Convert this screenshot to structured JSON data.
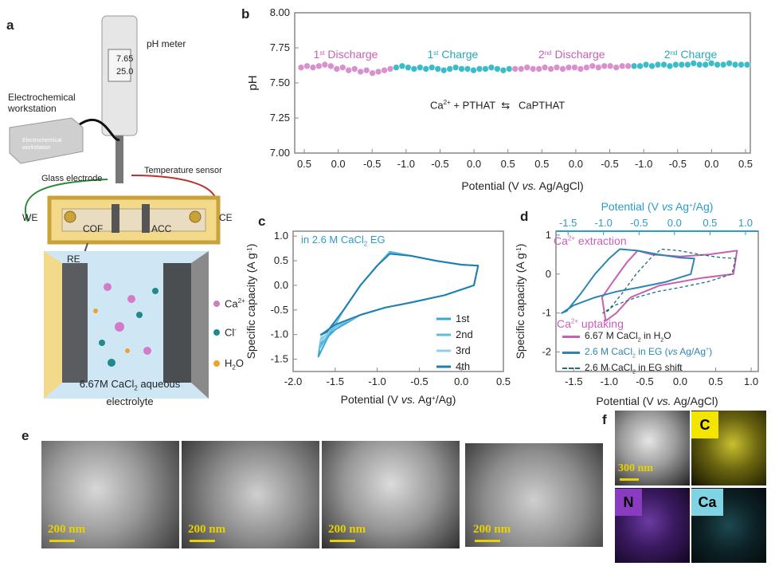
{
  "panels": {
    "a": {
      "letter": "a",
      "ph_meter_label": "pH meter",
      "ph_display_line1": "7.65",
      "ph_display_line2": "25.0",
      "workstation_label": "Electrochemical workstation",
      "workstation_box_text": "Electrochemical workstation",
      "glass_electrode_label": "Glass electrode",
      "temperature_sensor_label": "Temperature sensor",
      "we_label": "WE",
      "ce_label": "CE",
      "cof_label": "COF",
      "acc_label": "ACC",
      "re_label": "RE",
      "legend": {
        "ca": "Ca",
        "ca_sup": "2+",
        "cl": "Cl",
        "cl_sup": "-",
        "h2o": "H",
        "h2o_sub": "2",
        "h2o_tail": "O"
      },
      "electrolyte_line1_a": "6.67M CaCl",
      "electrolyte_line1_sub": "2",
      "electrolyte_line1_b": " aqueous",
      "electrolyte_line2": "electrolyte",
      "colors": {
        "cell_frame": "#c9a23a",
        "cell_fill": "#f3d98a",
        "liquid": "#bcdcf0",
        "carbon": "#3b3b3b",
        "ca_ion": "#d27bc7",
        "cl_ion": "#1f8a8a"
      }
    },
    "b": {
      "letter": "b",
      "reaction": {
        "ca": "Ca",
        "ca_sup": "2+",
        "rest": " + PTHAT",
        "arrow": "⇆",
        "product": "CaPTHAT"
      },
      "segment_labels": [
        {
          "main": "1",
          "sup": "st",
          "tail": " Discharge",
          "color": "#c760b5"
        },
        {
          "main": "1",
          "sup": "st",
          "tail": " Charge",
          "color": "#27a8b8"
        },
        {
          "main": "2",
          "sup": "nd",
          "tail": " Discharge",
          "color": "#c760b5"
        },
        {
          "main": "2",
          "sup": "nd",
          "tail": " Charge",
          "color": "#27a8b8"
        }
      ]
    },
    "c": {
      "letter": "c",
      "annotation": "in 2.6 M CaCl",
      "annotation_sub": "2",
      "annotation_tail": " EG",
      "annotation_color": "#2b9bc9"
    },
    "d": {
      "letter": "d",
      "extraction_label_a": "Ca",
      "extraction_label_sup": "2+",
      "extraction_label_b": " extraction",
      "uptaking_label_a": "Ca",
      "uptaking_label_sup": "2+",
      "uptaking_label_b": " uptaking",
      "legend": [
        {
          "text_a": "6.67 M CaCl",
          "sub": "2",
          "text_b": " in H",
          "sub2": "2",
          "text_c": "O",
          "color": "#c760b5",
          "style": "solid"
        },
        {
          "text_a": "2.6 M CaCl",
          "sub": "2",
          "text_b": " in EG (",
          "italic": "vs",
          "text_c": " Ag/Ag",
          "sup": "+",
          "text_d": ")",
          "color": "#2b86b4",
          "style": "solid"
        },
        {
          "text_a": "2.6 M CaCl",
          "sub": "2",
          "text_b": " in EG shift",
          "color": "#1d6f7a",
          "style": "dashed"
        }
      ]
    },
    "e": {
      "letter": "e",
      "scalebars": [
        "200 nm",
        "200 nm",
        "200 nm",
        "200 nm"
      ]
    },
    "f": {
      "letter": "f",
      "scalebar": "300 nm",
      "tiles": [
        {
          "label": "C",
          "bg": "#f3e500",
          "fg": "#000000"
        },
        {
          "label": "N",
          "bg": "#8a3cc0",
          "fg": "#000000"
        },
        {
          "label": "Ca",
          "bg": "#7fd3e2",
          "fg": "#000000"
        }
      ]
    }
  },
  "chart_data": [
    {
      "id": "b",
      "type": "line",
      "title": "",
      "xlabel_a": "Potential (V ",
      "xlabel_italic": "vs.",
      "xlabel_b": " Ag/AgCl)",
      "ylabel": "pH",
      "ylim": [
        7.0,
        8.0
      ],
      "yticks": [
        "7.00",
        "7.25",
        "7.50",
        "7.75",
        "8.00"
      ],
      "xtick_labels": [
        "0.5",
        "0.0",
        "-0.5",
        "-1.0",
        "-0.5",
        "0.0",
        "0.5",
        "0.5",
        "0.0",
        "-0.5",
        "-1.0",
        "-0.5",
        "0.0",
        "0.5"
      ],
      "series": [
        {
          "segment": "1st Discharge",
          "color": "#d891cd",
          "values": [
            7.61,
            7.62,
            7.61,
            7.62,
            7.63,
            7.62,
            7.6,
            7.61,
            7.59,
            7.6,
            7.58,
            7.59,
            7.57,
            7.58,
            7.59,
            7.6
          ]
        },
        {
          "segment": "1st Charge",
          "color": "#3bbcc8",
          "values": [
            7.61,
            7.62,
            7.61,
            7.6,
            7.61,
            7.6,
            7.61,
            7.6,
            7.59,
            7.6,
            7.61,
            7.6,
            7.6,
            7.59,
            7.6,
            7.6,
            7.61,
            7.6,
            7.59,
            7.6
          ]
        },
        {
          "segment": "2nd Discharge",
          "color": "#d891cd",
          "values": [
            7.6,
            7.6,
            7.61,
            7.6,
            7.6,
            7.61,
            7.6,
            7.61,
            7.6,
            7.61,
            7.61,
            7.6,
            7.61,
            7.62,
            7.61,
            7.62,
            7.62,
            7.61,
            7.62,
            7.62
          ]
        },
        {
          "segment": "2nd Charge",
          "color": "#3bbcc8",
          "values": [
            7.62,
            7.62,
            7.63,
            7.62,
            7.63,
            7.63,
            7.62,
            7.63,
            7.63,
            7.63,
            7.64,
            7.63,
            7.63,
            7.64,
            7.63,
            7.63,
            7.64,
            7.63,
            7.63,
            7.63
          ]
        }
      ]
    },
    {
      "id": "c",
      "type": "line",
      "title": "",
      "xlabel_a": "Potential (V ",
      "xlabel_italic": "vs.",
      "xlabel_b": " Ag",
      "xlabel_sup": "+",
      "xlabel_c": "/Ag)",
      "ylabel_a": "Specific capacity (A g",
      "ylabel_sup": "-1",
      "ylabel_b": ")",
      "xlim": [
        -2.0,
        0.5
      ],
      "ylim": [
        -1.75,
        1.1
      ],
      "xticks": [
        -2.0,
        -1.5,
        -1.0,
        -0.5,
        0.0,
        0.5
      ],
      "xtick_labels": [
        "-2.0",
        "-1.5",
        "-1.0",
        "-0.5",
        "0.0",
        "0.5"
      ],
      "yticks": [
        -1.5,
        -1.0,
        -0.5,
        0.0,
        0.5,
        1.0
      ],
      "ytick_labels": [
        "-1.5",
        "-1.0",
        "-0.5",
        "0.0",
        "0.5",
        "1.0"
      ],
      "series": [
        {
          "name": "1st",
          "color": "#3aa6d6",
          "x": [
            0.2,
            0.15,
            -0.2,
            -0.6,
            -0.9,
            -1.2,
            -1.5,
            -1.68,
            -1.7,
            -1.6,
            -1.4,
            -1.2,
            -1.0,
            -0.85,
            -0.6,
            -0.3,
            0.0,
            0.2
          ],
          "y": [
            0.4,
            0.0,
            -0.2,
            -0.35,
            -0.45,
            -0.6,
            -0.9,
            -1.2,
            -1.45,
            -1.1,
            -0.5,
            0.0,
            0.4,
            0.68,
            0.6,
            0.5,
            0.42,
            0.4
          ]
        },
        {
          "name": "2nd",
          "color": "#5fbedf",
          "x": [
            0.2,
            0.15,
            -0.2,
            -0.6,
            -0.9,
            -1.2,
            -1.5,
            -1.67,
            -1.69,
            -1.6,
            -1.4,
            -1.2,
            -1.0,
            -0.85,
            -0.6,
            -0.3,
            0.0,
            0.2
          ],
          "y": [
            0.4,
            0.0,
            -0.2,
            -0.35,
            -0.45,
            -0.6,
            -0.85,
            -1.1,
            -1.3,
            -1.05,
            -0.5,
            0.0,
            0.4,
            0.66,
            0.6,
            0.5,
            0.42,
            0.4
          ]
        },
        {
          "name": "3rd",
          "color": "#8fd0e8",
          "x": [
            0.2,
            0.15,
            -0.2,
            -0.6,
            -0.9,
            -1.2,
            -1.5,
            -1.66,
            -1.68,
            -1.6,
            -1.4,
            -1.2,
            -1.0,
            -0.85,
            -0.6,
            -0.3,
            0.0,
            0.2
          ],
          "y": [
            0.4,
            0.0,
            -0.2,
            -0.35,
            -0.45,
            -0.6,
            -0.82,
            -1.02,
            -1.15,
            -1.0,
            -0.5,
            0.0,
            0.4,
            0.65,
            0.6,
            0.5,
            0.42,
            0.4
          ]
        },
        {
          "name": "4th",
          "color": "#1f7fb0",
          "x": [
            0.2,
            0.15,
            -0.2,
            -0.6,
            -0.9,
            -1.2,
            -1.5,
            -1.65,
            -1.67,
            -1.6,
            -1.4,
            -1.2,
            -1.0,
            -0.85,
            -0.6,
            -0.3,
            0.0,
            0.2
          ],
          "y": [
            0.4,
            0.0,
            -0.2,
            -0.35,
            -0.45,
            -0.6,
            -0.8,
            -0.98,
            -1.0,
            -0.95,
            -0.5,
            0.0,
            0.4,
            0.64,
            0.6,
            0.5,
            0.42,
            0.4
          ]
        }
      ]
    },
    {
      "id": "d",
      "type": "line",
      "title": "",
      "xlabel_a": "Potential (V ",
      "xlabel_italic": "vs.",
      "xlabel_b": " Ag/AgCl)",
      "top_xlabel_a": "Potential (V ",
      "top_xlabel_italic": "vs",
      "top_xlabel_b": " Ag",
      "top_xlabel_sup": "+",
      "top_xlabel_c": "/Ag)",
      "ylabel_a": "Specific capacity (A g",
      "ylabel_sup": "-1",
      "ylabel_b": ")",
      "xlim": [
        -1.75,
        1.1
      ],
      "ylim": [
        -2.5,
        1.1
      ],
      "xticks": [
        -1.5,
        -1.0,
        -0.5,
        0.0,
        0.5,
        1.0
      ],
      "xtick_labels": [
        "-1.5",
        "-1.0",
        "-0.5",
        "0.0",
        "0.5",
        "1.0"
      ],
      "top_xticks": [
        -1.5,
        -1.0,
        -0.5,
        0.0,
        0.5,
        1.0
      ],
      "top_xtick_labels": [
        "-1.5",
        "-1.0",
        "-0.5",
        "0.0",
        "0.5",
        "1.0"
      ],
      "yticks": [
        -2,
        -1,
        0,
        1
      ],
      "ytick_labels": [
        "-2",
        "-1",
        "0",
        "1"
      ],
      "series": [
        {
          "name": "6.67 M CaCl2 in H2O",
          "color": "#c760b5",
          "x": [
            0.8,
            0.75,
            0.3,
            -0.3,
            -0.7,
            -0.9,
            -1.05,
            -1.1,
            -0.95,
            -0.75,
            -0.6,
            -0.4,
            0.0,
            0.4,
            0.8
          ],
          "y": [
            0.6,
            0.0,
            -0.1,
            -0.3,
            -0.6,
            -1.0,
            -1.2,
            -0.6,
            -0.2,
            0.3,
            0.6,
            0.5,
            0.45,
            0.5,
            0.6
          ]
        },
        {
          "name": "2.6 M CaCl2 in EG (vs Ag/Ag+)",
          "color": "#2b86b4",
          "x": [
            0.2,
            0.15,
            -0.2,
            -0.6,
            -0.9,
            -1.2,
            -1.5,
            -1.65,
            -1.67,
            -1.6,
            -1.4,
            -1.2,
            -1.0,
            -0.85,
            -0.6,
            -0.3,
            0.0,
            0.2
          ],
          "y": [
            0.4,
            0.0,
            -0.2,
            -0.35,
            -0.45,
            -0.6,
            -0.8,
            -0.98,
            -1.0,
            -0.95,
            -0.5,
            0.0,
            0.4,
            0.64,
            0.6,
            0.5,
            0.42,
            0.4
          ]
        },
        {
          "name": "2.6 M CaCl2 in EG shift",
          "color": "#1d6f7a",
          "dashed": true,
          "x": [
            0.78,
            0.73,
            0.38,
            -0.02,
            -0.32,
            -0.62,
            -0.92,
            -1.07,
            -1.09,
            -1.02,
            -0.82,
            -0.62,
            -0.42,
            -0.27,
            -0.02,
            0.28,
            0.58,
            0.78
          ],
          "y": [
            0.4,
            0.0,
            -0.2,
            -0.35,
            -0.45,
            -0.6,
            -0.8,
            -0.98,
            -1.0,
            -0.95,
            -0.5,
            0.0,
            0.4,
            0.64,
            0.6,
            0.5,
            0.42,
            0.4
          ]
        }
      ]
    }
  ]
}
